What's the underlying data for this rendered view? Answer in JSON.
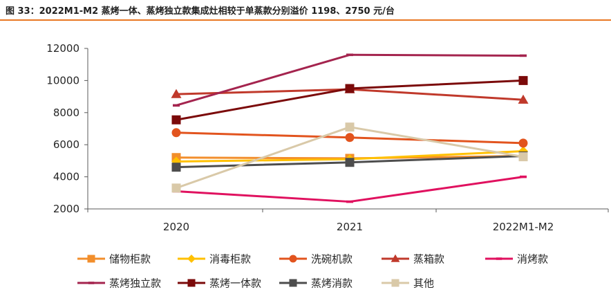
{
  "header": {
    "title": "图 33：2022M1-M2 蒸烤一体、蒸烤独立款集成灶相较于单蒸款分别溢价 1198、2750 元/台"
  },
  "chart_data": {
    "type": "line",
    "categories": [
      "2020",
      "2021",
      "2022M1-M2"
    ],
    "ylim": [
      2000,
      12000
    ],
    "yticks": [
      2000,
      4000,
      6000,
      8000,
      10000,
      12000
    ],
    "grid": false,
    "legend_position": "bottom",
    "series": [
      {
        "name": "储物柜款",
        "values": [
          5200,
          5150,
          5300
        ],
        "color": "#F28E2B",
        "marker": "square"
      },
      {
        "name": "消毒柜款",
        "values": [
          4950,
          5100,
          5600
        ],
        "color": "#FFC000",
        "marker": "diamond"
      },
      {
        "name": "洗碗机款",
        "values": [
          6750,
          6450,
          6100
        ],
        "color": "#E2541E",
        "marker": "circle"
      },
      {
        "name": "蒸箱款",
        "values": [
          9150,
          9450,
          8800
        ],
        "color": "#C0392B",
        "marker": "triangle"
      },
      {
        "name": "消烤款",
        "values": [
          3100,
          2450,
          4000
        ],
        "color": "#E0115F",
        "marker": "dash"
      },
      {
        "name": "蒸烤独立款",
        "values": [
          8450,
          11600,
          11550
        ],
        "color": "#A4244E",
        "marker": "dash"
      },
      {
        "name": "蒸烤一体款",
        "values": [
          7550,
          9500,
          10000
        ],
        "color": "#7B0A0A",
        "marker": "square"
      },
      {
        "name": "蒸烤消款",
        "values": [
          4600,
          4900,
          5300
        ],
        "color": "#4D4D4D",
        "marker": "square"
      },
      {
        "name": "其他",
        "values": [
          3300,
          7100,
          5250
        ],
        "color": "#D9C9A8",
        "marker": "square"
      }
    ]
  }
}
